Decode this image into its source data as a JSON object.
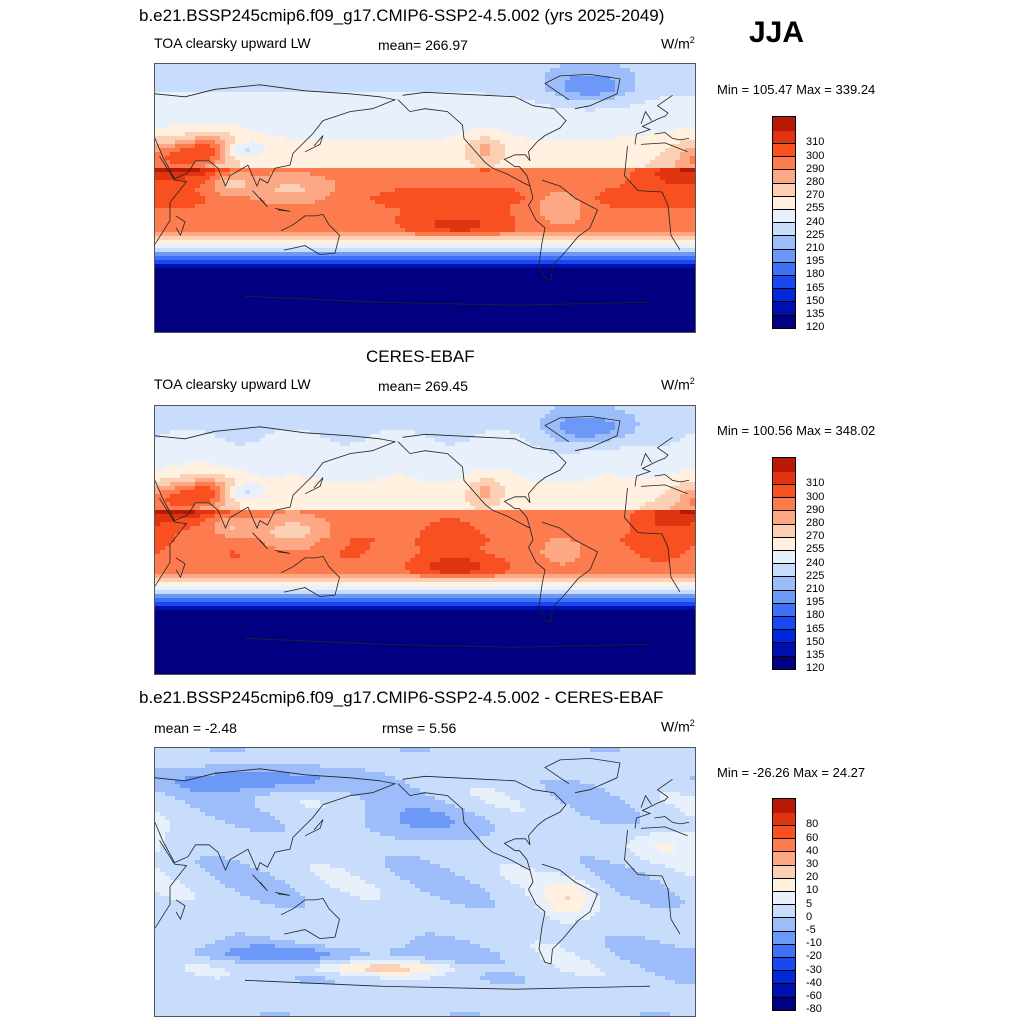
{
  "season": "JJA",
  "panels": [
    {
      "title": "b.e21.BSSP245cmip6.f09_g17.CMIP6-SSP2-4.5.002 (yrs 2025-2049)",
      "left_label": "TOA clearsky upward LW",
      "center_label": "mean= 266.97",
      "units": "W/m",
      "units_sup": "2",
      "minmax": "Min = 105.47 Max = 339.24"
    },
    {
      "title": "CERES-EBAF",
      "left_label": "TOA clearsky upward LW",
      "center_label": "mean= 269.45",
      "units": "W/m",
      "units_sup": "2",
      "minmax": "Min = 100.56 Max = 348.02"
    },
    {
      "title": "b.e21.BSSP245cmip6.f09_g17.CMIP6-SSP2-4.5.002 - CERES-EBAF",
      "left_label": "mean =  -2.48",
      "center_label": "rmse =   5.56",
      "units": "W/m",
      "units_sup": "2",
      "minmax": "Min = -26.26 Max =  24.27"
    }
  ],
  "chart_data": [
    {
      "type": "heatmap",
      "title": "b.e21.BSSP245cmip6.f09_g17.CMIP6-SSP2-4.5.002 (yrs 2025-2049)",
      "variable": "TOA clearsky upward LW",
      "units": "W/m2",
      "mean": 266.97,
      "min": 105.47,
      "max": 339.24,
      "colorbar_levels": [
        120,
        135,
        150,
        165,
        180,
        195,
        210,
        225,
        240,
        255,
        270,
        280,
        290,
        300,
        310
      ],
      "colors": [
        "#000080",
        "#0010b0",
        "#0028d8",
        "#1848f0",
        "#4070f8",
        "#6c98f8",
        "#9cbcfa",
        "#c8dcfc",
        "#e8f0fc",
        "#fff0e0",
        "#fcd0b4",
        "#fca884",
        "#fc7c50",
        "#f85020",
        "#e03410",
        "#b81808"
      ]
    },
    {
      "type": "heatmap",
      "title": "CERES-EBAF",
      "variable": "TOA clearsky upward LW",
      "units": "W/m2",
      "mean": 269.45,
      "min": 100.56,
      "max": 348.02,
      "colorbar_levels": [
        120,
        135,
        150,
        165,
        180,
        195,
        210,
        225,
        240,
        255,
        270,
        280,
        290,
        300,
        310
      ],
      "colors": [
        "#000080",
        "#0010b0",
        "#0028d8",
        "#1848f0",
        "#4070f8",
        "#6c98f8",
        "#9cbcfa",
        "#c8dcfc",
        "#e8f0fc",
        "#fff0e0",
        "#fcd0b4",
        "#fca884",
        "#fc7c50",
        "#f85020",
        "#e03410",
        "#b81808"
      ]
    },
    {
      "type": "heatmap",
      "title": "b.e21.BSSP245cmip6.f09_g17.CMIP6-SSP2-4.5.002 - CERES-EBAF",
      "units": "W/m2",
      "mean": -2.48,
      "rmse": 5.56,
      "min": -26.26,
      "max": 24.27,
      "colorbar_levels": [
        -80,
        -60,
        -40,
        -30,
        -20,
        -10,
        -5,
        0,
        5,
        10,
        20,
        30,
        40,
        60,
        80
      ],
      "colors": [
        "#000080",
        "#0010b0",
        "#0028d8",
        "#1848f0",
        "#4070f8",
        "#6c98f8",
        "#9cbcfa",
        "#c8dcfc",
        "#e8f0fc",
        "#fff0e0",
        "#fcd0b4",
        "#fca884",
        "#fc7c50",
        "#f85020",
        "#e03410",
        "#b81808"
      ]
    }
  ]
}
